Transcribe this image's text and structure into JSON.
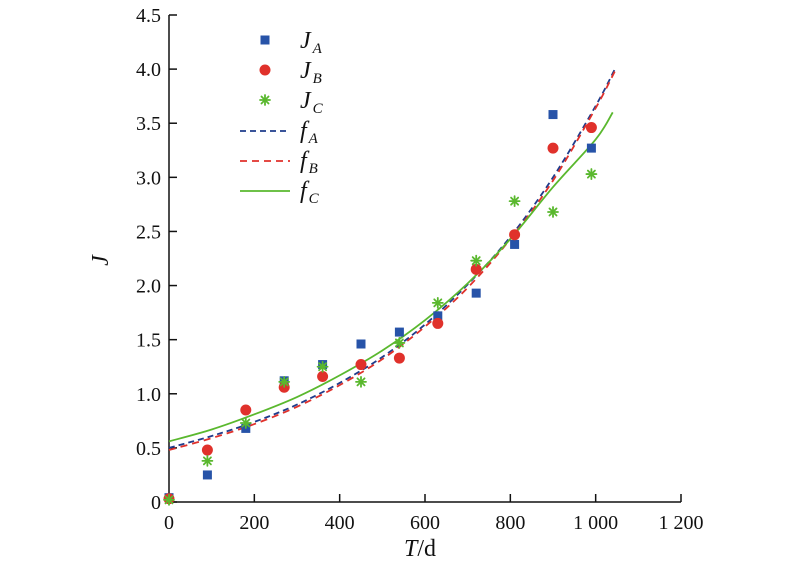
{
  "chart_data": {
    "type": "scatter",
    "xlabel": {
      "var": "T",
      "unit": "/d"
    },
    "ylabel": "J",
    "xlim": [
      0,
      1200
    ],
    "ylim": [
      0,
      4.5
    ],
    "x_ticks": [
      0,
      200,
      400,
      600,
      800,
      1000,
      1200
    ],
    "x_tick_labels": [
      "0",
      "200",
      "400",
      "600",
      "800",
      "1 000",
      "1 200"
    ],
    "y_ticks": [
      0,
      0.5,
      1.0,
      1.5,
      2.0,
      2.5,
      3.0,
      3.5,
      4.0,
      4.5
    ],
    "y_tick_labels": [
      "0",
      "0.5",
      "1.0",
      "1.5",
      "2.0",
      "2.5",
      "3.0",
      "3.5",
      "4.0",
      "4.5"
    ],
    "grid": false,
    "legend_position": "top-left",
    "series": [
      {
        "name": "J",
        "sub": "A",
        "kind": "scatter",
        "marker": "square",
        "color": "#2753a8",
        "points": [
          [
            0,
            0.04
          ],
          [
            90,
            0.25
          ],
          [
            180,
            0.68
          ],
          [
            270,
            1.12
          ],
          [
            360,
            1.27
          ],
          [
            450,
            1.46
          ],
          [
            540,
            1.57
          ],
          [
            630,
            1.72
          ],
          [
            720,
            1.93
          ],
          [
            810,
            2.38
          ],
          [
            900,
            3.58
          ],
          [
            990,
            3.27
          ]
        ]
      },
      {
        "name": "J",
        "sub": "B",
        "kind": "scatter",
        "marker": "circle",
        "color": "#e0312b",
        "points": [
          [
            0,
            0.03
          ],
          [
            90,
            0.48
          ],
          [
            180,
            0.85
          ],
          [
            270,
            1.06
          ],
          [
            360,
            1.16
          ],
          [
            450,
            1.27
          ],
          [
            540,
            1.33
          ],
          [
            630,
            1.65
          ],
          [
            720,
            2.15
          ],
          [
            810,
            2.47
          ],
          [
            900,
            3.27
          ],
          [
            990,
            3.46
          ]
        ]
      },
      {
        "name": "J",
        "sub": "C",
        "kind": "scatter",
        "marker": "asterisk",
        "color": "#5ab82e",
        "points": [
          [
            0,
            0.02
          ],
          [
            90,
            0.38
          ],
          [
            180,
            0.73
          ],
          [
            270,
            1.11
          ],
          [
            360,
            1.25
          ],
          [
            450,
            1.11
          ],
          [
            540,
            1.47
          ],
          [
            630,
            1.84
          ],
          [
            720,
            2.23
          ],
          [
            810,
            2.78
          ],
          [
            900,
            2.68
          ],
          [
            990,
            3.03
          ]
        ]
      },
      {
        "name": "f",
        "sub": "A",
        "kind": "line",
        "dash": "6,4",
        "color": "#1f3c8c",
        "points": [
          [
            0,
            0.5
          ],
          [
            100,
            0.61
          ],
          [
            200,
            0.74
          ],
          [
            300,
            0.9
          ],
          [
            400,
            1.1
          ],
          [
            500,
            1.34
          ],
          [
            600,
            1.64
          ],
          [
            700,
            2.01
          ],
          [
            800,
            2.45
          ],
          [
            900,
            3.0
          ],
          [
            1000,
            3.66
          ],
          [
            1045,
            4.0
          ]
        ]
      },
      {
        "name": "f",
        "sub": "B",
        "kind": "line",
        "dash": "7,5",
        "color": "#e0312b",
        "points": [
          [
            0,
            0.48
          ],
          [
            100,
            0.59
          ],
          [
            200,
            0.72
          ],
          [
            300,
            0.88
          ],
          [
            400,
            1.08
          ],
          [
            500,
            1.32
          ],
          [
            600,
            1.62
          ],
          [
            700,
            1.98
          ],
          [
            800,
            2.43
          ],
          [
            900,
            2.97
          ],
          [
            1000,
            3.64
          ],
          [
            1045,
            3.98
          ]
        ]
      },
      {
        "name": "f",
        "sub": "C",
        "kind": "line",
        "dash": "",
        "color": "#5ab82e",
        "points": [
          [
            0,
            0.56
          ],
          [
            100,
            0.67
          ],
          [
            200,
            0.81
          ],
          [
            300,
            0.97
          ],
          [
            400,
            1.17
          ],
          [
            500,
            1.4
          ],
          [
            600,
            1.68
          ],
          [
            700,
            2.02
          ],
          [
            800,
            2.43
          ],
          [
            900,
            2.91
          ],
          [
            1000,
            3.35
          ],
          [
            1040,
            3.6
          ]
        ]
      }
    ]
  }
}
